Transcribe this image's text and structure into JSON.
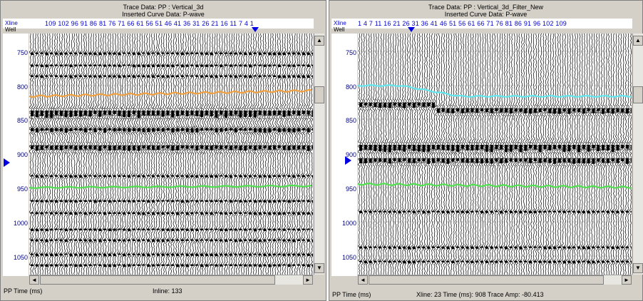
{
  "left": {
    "title_line1": "Trace Data: PP : Vertical_3d",
    "title_line2": "Inserted Curve Data:  P-wave",
    "xline_label": "Xline",
    "well_label": "Well",
    "xline_numbers": "109 102 96 91 86 81 76 71 66 61 56 51 46 41 36 31 26 21 16 11 7 4 1",
    "time_ticks": [
      "750",
      "800",
      "850",
      "900",
      "950",
      "1000",
      "1050"
    ],
    "status_left": "PP Time (ms)",
    "status_right": "Inline: 133",
    "curve_colors": {
      "upper": "#f0a040",
      "lower": "#50e050"
    }
  },
  "right": {
    "title_line1": "Trace Data: PP : Vertical_3d_Filter_New",
    "title_line2": "Inserted Curve Data:  P-wave",
    "xline_label": "Xline",
    "well_label": "Well",
    "xline_numbers": "1 4 7 11 16 21 26 31 36 41 46 51 56 61 66 71 76 81 86 91 96 102 109",
    "time_ticks": [
      "750",
      "800",
      "850",
      "900",
      "950",
      "1000",
      "1050"
    ],
    "status_left": "PP Time (ms)",
    "status_right": "Xline: 23  Time (ms): 908  Trace Amp: -80.413",
    "curve_colors": {
      "upper": "#60e8f0",
      "lower": "#50e050"
    }
  },
  "icons": {
    "scroll_up": "▲",
    "scroll_down": "▼",
    "scroll_left": "◄",
    "scroll_right": "►"
  }
}
